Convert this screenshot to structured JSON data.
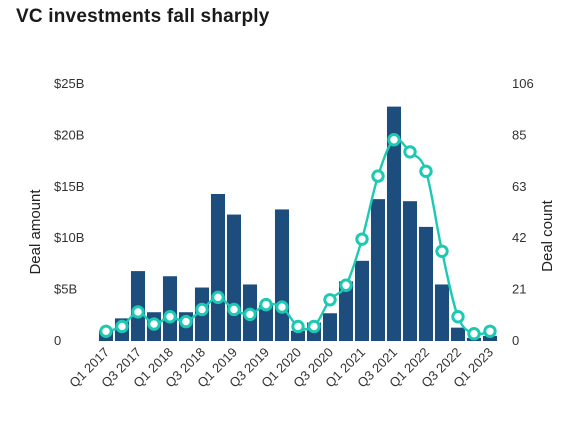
{
  "chart_data": {
    "type": "bar",
    "title": "VC investments fall sharply",
    "ylabel": "Deal amount",
    "y2label": "Deal count",
    "ylim": [
      0,
      25
    ],
    "y2lim": [
      0,
      106
    ],
    "y_ticks": [
      "0",
      "$5B",
      "$10B",
      "$15B",
      "$20B",
      "$25B"
    ],
    "y2_ticks": [
      "0",
      "21",
      "42",
      "63",
      "85",
      "106"
    ],
    "x_tick_labels": [
      "Q1 2017",
      "Q3 2017",
      "Q1 2018",
      "Q3 2018",
      "Q1 2019",
      "Q3 2019",
      "Q1 2020",
      "Q3 2020",
      "Q1 2021",
      "Q3 2021",
      "Q1 2022",
      "Q3 2022",
      "Q1 2023"
    ],
    "categories": [
      "Q1 2017",
      "Q2 2017",
      "Q3 2017",
      "Q4 2017",
      "Q1 2018",
      "Q2 2018",
      "Q3 2018",
      "Q4 2018",
      "Q1 2019",
      "Q2 2019",
      "Q3 2019",
      "Q4 2019",
      "Q1 2020",
      "Q2 2020",
      "Q3 2020",
      "Q4 2020",
      "Q1 2021",
      "Q2 2021",
      "Q3 2021",
      "Q4 2021",
      "Q1 2022",
      "Q2 2022",
      "Q3 2022",
      "Q4 2022",
      "Q1 2023"
    ],
    "series": [
      {
        "kind": "bar",
        "axis": "left",
        "values": [
          1.0,
          2.2,
          6.8,
          2.8,
          6.3,
          2.8,
          5.2,
          14.3,
          12.3,
          5.5,
          3.5,
          12.8,
          1.0,
          1.8,
          2.7,
          5.8,
          7.8,
          13.8,
          22.8,
          13.6,
          11.1,
          5.5,
          1.3,
          0.3,
          0.5
        ]
      },
      {
        "kind": "line",
        "axis": "right",
        "values": [
          4,
          6,
          12,
          7,
          10,
          8,
          13,
          18,
          13,
          11,
          15,
          14,
          6,
          6,
          17,
          23,
          42,
          68,
          83,
          78,
          70,
          37,
          10,
          3,
          4
        ]
      }
    ],
    "colors": {
      "bar": "#1c4d7d",
      "line": "#1ec9b4",
      "marker_fill": "#ffffff",
      "axis": "#555555"
    },
    "grid": false
  }
}
